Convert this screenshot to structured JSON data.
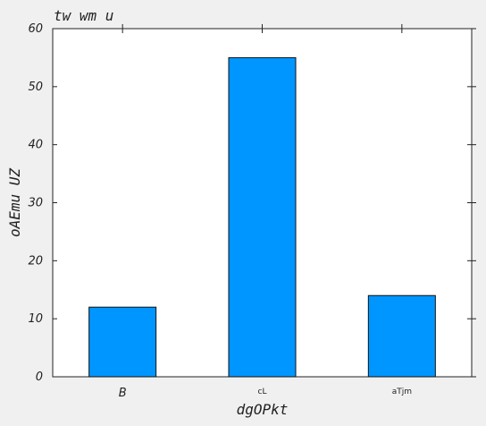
{
  "chart_data": {
    "type": "bar",
    "title": "tw wm u",
    "xlabel": "dgOPkt",
    "ylabel": "oAEmu UZ",
    "categories": [
      "B",
      "cL",
      "aTjm"
    ],
    "values": [
      12,
      55,
      14
    ],
    "ylim": [
      0,
      60
    ],
    "yticks": [
      0,
      10,
      20,
      30,
      40,
      50,
      60
    ],
    "bar_color": "#0096ff",
    "grid": false
  }
}
